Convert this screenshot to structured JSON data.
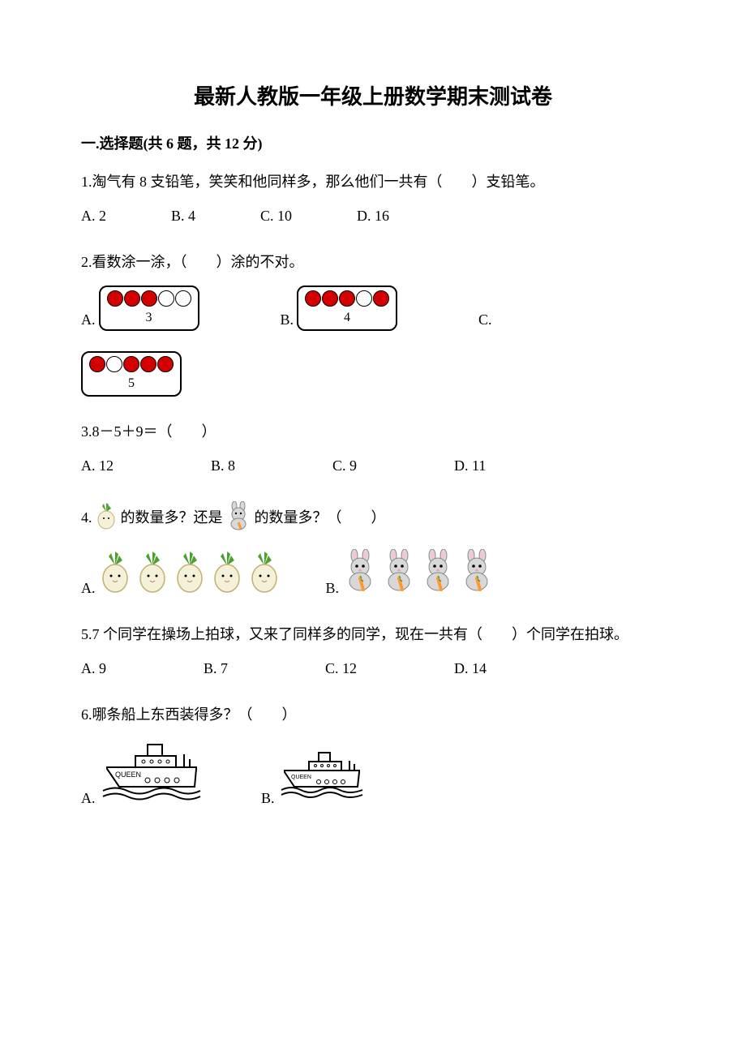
{
  "title": "最新人教版一年级上册数学期末测试卷",
  "section1": {
    "header": "一.选择题(共 6 题，共 12 分)",
    "q1": {
      "text": "1.淘气有 8 支铅笔，笑笑和他同样多，那么他们一共有（　　）支铅笔。",
      "optA": "A. 2",
      "optB": "B. 4",
      "optC": "C. 10",
      "optD": "D. 16"
    },
    "q2": {
      "text": "2.看数涂一涂，（　　）涂的不对。",
      "optA": "A.",
      "optB": "B.",
      "optC": "C.",
      "boxA": {
        "pattern": [
          "filled-red",
          "filled-red",
          "filled-red",
          "empty",
          "empty"
        ],
        "number": "3"
      },
      "boxB": {
        "pattern": [
          "filled-red",
          "filled-red",
          "filled-red",
          "empty",
          "filled-red"
        ],
        "number": "4"
      },
      "boxC": {
        "pattern": [
          "filled-red",
          "empty",
          "filled-red",
          "filled-red",
          "filled-red"
        ],
        "number": "5"
      },
      "colors": {
        "filled": "#d40000",
        "empty": "#ffffff",
        "border": "#000000"
      }
    },
    "q3": {
      "text": "3.8－5＋9＝（　　）",
      "optA": "A. 12",
      "optB": "B. 8",
      "optC": "C. 9",
      "optD": "D. 11"
    },
    "q4": {
      "text_prefix": "4.",
      "text_mid1": "的数量多？还是",
      "text_mid2": "的数量多？（　　）",
      "optA": "A.",
      "optB": "B.",
      "turnip_count": 5,
      "rabbit_count": 4,
      "colors": {
        "turnip_leaf": "#4ca030",
        "turnip_body": "#f5f0d8",
        "rabbit_body": "#d8d8d8",
        "rabbit_carrot": "#ff9933"
      }
    },
    "q5": {
      "text": "5.7 个同学在操场上拍球，又来了同样多的同学，现在一共有（　　）个同学在拍球。",
      "optA": "A. 9",
      "optB": "B. 7",
      "optC": "C. 12",
      "optD": "D. 14"
    },
    "q6": {
      "text": "6.哪条船上东西装得多？（　　）",
      "optA": "A.",
      "optB": "B.",
      "ship_label": "QUEEN"
    }
  }
}
